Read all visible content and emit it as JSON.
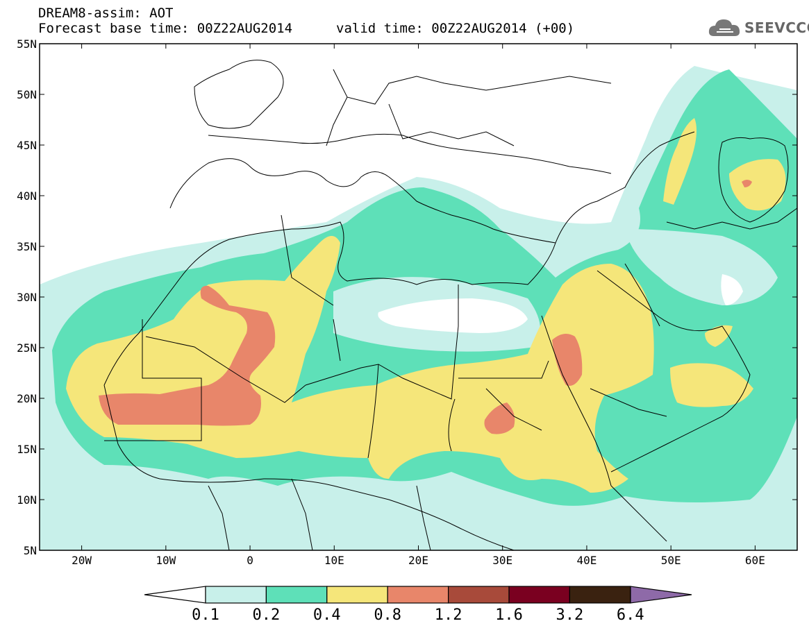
{
  "header": {
    "title": "DREAM8-assim: AOT",
    "base_time": "Forecast base time: 00Z22AUG2014",
    "valid_time": "valid time: 00Z22AUG2014 (+00)"
  },
  "logo": {
    "text": "SEEVCCC",
    "icon": "cloud-icon"
  },
  "map": {
    "lon_range": [
      -25,
      65
    ],
    "lat_range": [
      5,
      55
    ],
    "lat_ticks": [
      "5N",
      "10N",
      "15N",
      "20N",
      "25N",
      "30N",
      "35N",
      "40N",
      "45N",
      "50N",
      "55N"
    ],
    "lon_ticks": [
      "20W",
      "10W",
      "0",
      "10E",
      "20E",
      "30E",
      "40E",
      "50E",
      "60E"
    ],
    "colors": {
      "ocean": "#ffffff",
      "lvl_0_1": "#c8f0ea",
      "lvl_0_2": "#5ee0b8",
      "lvl_0_4": "#f5e67a",
      "lvl_0_8": "#e8866a"
    }
  },
  "colorbar": {
    "labels": [
      "0.1",
      "0.2",
      "0.4",
      "0.8",
      "1.2",
      "1.6",
      "3.2",
      "6.4"
    ],
    "colors": [
      "#c8f0ea",
      "#5ee0b8",
      "#f5e67a",
      "#e8866a",
      "#a84a3a",
      "#7a0020",
      "#3a2210"
    ],
    "under_color": "#ffffff",
    "over_color": "#8e6aa8"
  }
}
